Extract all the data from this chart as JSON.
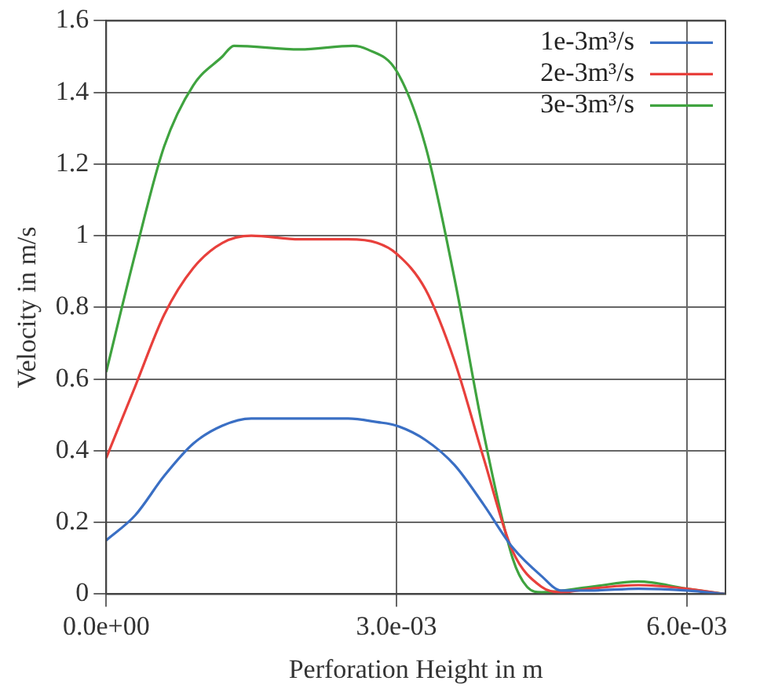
{
  "chart_data": {
    "type": "line",
    "xlabel": "Perforation Height in m",
    "ylabel": "Velocity in m/s",
    "xlim": [
      0,
      0.0064
    ],
    "xticks": [
      {
        "value": 0,
        "label": "0.0e+00"
      },
      {
        "value": 0.003,
        "label": "3.0e-03"
      },
      {
        "value": 0.006,
        "label": "6.0e-03"
      }
    ],
    "ylim": [
      0,
      1.6
    ],
    "yticks": [
      0,
      0.2,
      0.4,
      0.6,
      0.8,
      1,
      1.2,
      1.4,
      1.6
    ],
    "grid": true,
    "legend": "top right",
    "marker": "none",
    "line_style": "solid",
    "x": [
      0,
      0.0003,
      0.0006,
      0.0009,
      0.0012,
      0.0015,
      0.002,
      0.0025,
      0.0028,
      0.003,
      0.0033,
      0.0036,
      0.0039,
      0.0042,
      0.0045,
      0.0047,
      0.005,
      0.0055,
      0.006,
      0.0064
    ],
    "series": [
      {
        "name": "1e-3m³/s",
        "color": "#3a6fc4",
        "values": [
          0.15,
          0.22,
          0.33,
          0.42,
          0.47,
          0.49,
          0.49,
          0.49,
          0.48,
          0.47,
          0.43,
          0.36,
          0.25,
          0.13,
          0.05,
          0.01,
          0.01,
          0.015,
          0.01,
          0
        ]
      },
      {
        "name": "2e-3m³/s",
        "color": "#e8403c",
        "values": [
          0.38,
          0.58,
          0.78,
          0.91,
          0.98,
          1.0,
          0.99,
          0.99,
          0.98,
          0.95,
          0.85,
          0.65,
          0.38,
          0.12,
          0.02,
          0.005,
          0.015,
          0.025,
          0.015,
          0
        ]
      },
      {
        "name": "3e-3m³/s",
        "color": "#3fa33f",
        "x": [
          0,
          0.0003,
          0.0006,
          0.0009,
          0.0012,
          0.00132,
          0.002,
          0.00255,
          0.0027,
          0.003,
          0.0033,
          0.0036,
          0.0039,
          0.0042,
          0.00435,
          0.0045,
          0.005,
          0.0055,
          0.006,
          0.0064
        ],
        "values": [
          0.62,
          0.95,
          1.25,
          1.42,
          1.5,
          1.53,
          1.52,
          1.53,
          1.52,
          1.46,
          1.25,
          0.88,
          0.45,
          0.1,
          0.02,
          0.005,
          0.02,
          0.035,
          0.015,
          0
        ]
      }
    ]
  }
}
